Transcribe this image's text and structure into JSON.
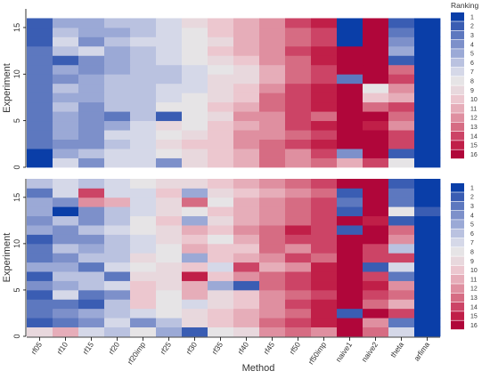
{
  "chart_data": [
    {
      "type": "heatmap",
      "title": "",
      "xlabel": "Method",
      "ylabel": "Experiment",
      "x_categories": [
        "rf05",
        "rf10",
        "rf15",
        "rf20",
        "rf20imp",
        "rf25",
        "rf30",
        "rf35",
        "rf40",
        "rf45",
        "rf50",
        "rf50imp",
        "naive1",
        "naive2",
        "theta",
        "arfima"
      ],
      "y_ticks": [
        0,
        5,
        10,
        15
      ],
      "y_range": [
        0,
        17
      ],
      "rows_bottom_to_top": [
        [
          1,
          7,
          4,
          7,
          7,
          4,
          9,
          10,
          11,
          13,
          12,
          13,
          11,
          14,
          8,
          1
        ],
        [
          1,
          5,
          6,
          7,
          7,
          8,
          9,
          10,
          11,
          13,
          12,
          14,
          4,
          16,
          2,
          1
        ],
        [
          3,
          4,
          4,
          6,
          7,
          9,
          10,
          10,
          12,
          13,
          14,
          15,
          16,
          16,
          14,
          1
        ],
        [
          3,
          5,
          4,
          7,
          7,
          8,
          9,
          10,
          12,
          12,
          13,
          14,
          16,
          16,
          14,
          1
        ],
        [
          3,
          5,
          4,
          5,
          7,
          9,
          8,
          10,
          11,
          12,
          14,
          15,
          16,
          15,
          12,
          1
        ],
        [
          3,
          5,
          4,
          3,
          6,
          2,
          8,
          9,
          12,
          12,
          14,
          13,
          16,
          16,
          13,
          1
        ],
        [
          3,
          6,
          4,
          6,
          6,
          8,
          8,
          10,
          11,
          13,
          14,
          15,
          16,
          13,
          14,
          1
        ],
        [
          3,
          5,
          5,
          6,
          6,
          7,
          8,
          9,
          10,
          13,
          14,
          15,
          16,
          10,
          11,
          1
        ],
        [
          3,
          6,
          5,
          6,
          6,
          7,
          7,
          9,
          10,
          12,
          14,
          15,
          16,
          8,
          12,
          1
        ],
        [
          3,
          4,
          5,
          6,
          6,
          6,
          7,
          9,
          9,
          11,
          13,
          14,
          3,
          16,
          14,
          1
        ],
        [
          3,
          5,
          4,
          5,
          6,
          6,
          7,
          8,
          9,
          11,
          13,
          14,
          16,
          16,
          13,
          1
        ],
        [
          3,
          2,
          4,
          5,
          6,
          7,
          8,
          9,
          10,
          12,
          13,
          15,
          16,
          16,
          2,
          1
        ],
        [
          3,
          6,
          7,
          5,
          6,
          7,
          8,
          10,
          11,
          12,
          14,
          15,
          16,
          16,
          5,
          1
        ],
        [
          2,
          7,
          4,
          6,
          7,
          7,
          8,
          9,
          11,
          12,
          13,
          14,
          1,
          16,
          4,
          1
        ],
        [
          2,
          6,
          5,
          5,
          6,
          7,
          8,
          10,
          11,
          12,
          13,
          14,
          1,
          16,
          3,
          1
        ],
        [
          2,
          5,
          5,
          6,
          6,
          7,
          9,
          10,
          11,
          12,
          14,
          15,
          1,
          16,
          2,
          1
        ]
      ],
      "legend": {
        "title": "Ranking",
        "labels": [
          "1",
          "2",
          "3",
          "4",
          "5",
          "6",
          "7",
          "8",
          "9",
          "10",
          "11",
          "12",
          "13",
          "14",
          "15",
          "16"
        ],
        "placement": "right"
      }
    },
    {
      "type": "heatmap",
      "title": "",
      "xlabel": "Method",
      "ylabel": "Experiment",
      "x_categories": [
        "rf05",
        "rf10",
        "rf15",
        "rf20",
        "rf20imp",
        "rf25",
        "rf30",
        "rf35",
        "rf40",
        "rf45",
        "rf50",
        "rf50imp",
        "naive1",
        "naive2",
        "theta",
        "arfima"
      ],
      "y_ticks": [
        0,
        5,
        10,
        15
      ],
      "y_range": [
        0,
        17
      ],
      "rows_bottom_to_top": [
        [
          9,
          11,
          7,
          6,
          8,
          5,
          2,
          8,
          9,
          12,
          13,
          12,
          16,
          13,
          7,
          1
        ],
        [
          2,
          3,
          4,
          7,
          4,
          6,
          9,
          10,
          11,
          13,
          14,
          15,
          16,
          12,
          3,
          1
        ],
        [
          3,
          4,
          5,
          6,
          7,
          8,
          9,
          10,
          11,
          12,
          13,
          15,
          2,
          16,
          14,
          1
        ],
        [
          3,
          3,
          2,
          6,
          10,
          8,
          7,
          9,
          10,
          12,
          14,
          15,
          16,
          13,
          11,
          1
        ],
        [
          2,
          7,
          3,
          4,
          10,
          8,
          11,
          9,
          10,
          12,
          13,
          14,
          16,
          14,
          13,
          1
        ],
        [
          4,
          5,
          6,
          7,
          10,
          9,
          11,
          5,
          2,
          13,
          14,
          15,
          16,
          15,
          12,
          1
        ],
        [
          2,
          6,
          6,
          3,
          9,
          9,
          15,
          10,
          12,
          13,
          14,
          15,
          16,
          14,
          3,
          1
        ],
        [
          5,
          5,
          3,
          7,
          8,
          9,
          10,
          7,
          14,
          11,
          12,
          15,
          16,
          2,
          7,
          1
        ],
        [
          3,
          4,
          6,
          6,
          9,
          8,
          5,
          10,
          11,
          12,
          14,
          13,
          16,
          14,
          14,
          1
        ],
        [
          3,
          6,
          5,
          6,
          7,
          8,
          11,
          10,
          10,
          13,
          12,
          14,
          16,
          14,
          6,
          1
        ],
        [
          2,
          4,
          4,
          6,
          7,
          9,
          10,
          8,
          11,
          13,
          14,
          14,
          16,
          16,
          12,
          1
        ],
        [
          5,
          4,
          6,
          7,
          8,
          9,
          11,
          10,
          12,
          13,
          15,
          14,
          2,
          16,
          13,
          1
        ],
        [
          4,
          6,
          4,
          6,
          8,
          10,
          5,
          9,
          11,
          12,
          13,
          14,
          16,
          15,
          2,
          1
        ],
        [
          5,
          1,
          4,
          6,
          7,
          9,
          8,
          10,
          11,
          12,
          13,
          14,
          2,
          16,
          8,
          2
        ],
        [
          5,
          4,
          12,
          11,
          7,
          9,
          13,
          8,
          11,
          12,
          13,
          14,
          3,
          16,
          3,
          1
        ],
        [
          3,
          7,
          14,
          7,
          7,
          10,
          5,
          9,
          10,
          11,
          12,
          13,
          2,
          16,
          3,
          1
        ],
        [
          6,
          7,
          6,
          7,
          8,
          9,
          9,
          10,
          11,
          12,
          13,
          14,
          16,
          16,
          2,
          1
        ]
      ],
      "legend": {
        "title": "",
        "labels": [
          "1",
          "2",
          "3",
          "4",
          "5",
          "6",
          "7",
          "8",
          "9",
          "10",
          "11",
          "12",
          "13",
          "14",
          "15",
          "16"
        ],
        "placement": "right"
      }
    }
  ],
  "colors": {
    "palette": [
      "#0a3ea8",
      "#3a5db3",
      "#5d78bf",
      "#7d90ca",
      "#9ba9d6",
      "#bac2e0",
      "#d5d8e8",
      "#e6e4e6",
      "#e8d8dd",
      "#ecc7cf",
      "#e6adb9",
      "#df8fa0",
      "#d66c83",
      "#cc4466",
      "#c01f48",
      "#b0063a"
    ],
    "axis_text": "#333333",
    "axis_line": "#000000"
  }
}
